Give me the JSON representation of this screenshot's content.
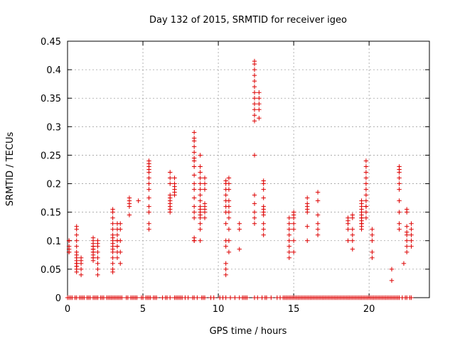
{
  "chart_data": {
    "type": "scatter",
    "title": "Day 132 of 2015, SRMTID for receiver igeo",
    "xlabel": "GPS time / hours",
    "ylabel": "SRMTID / TECUs",
    "xlim": [
      0,
      24
    ],
    "ylim": [
      0,
      0.45
    ],
    "x_ticks": [
      0,
      5,
      10,
      15,
      20
    ],
    "x_tick_labels": [
      "0",
      "5",
      "10",
      "15",
      "20"
    ],
    "y_ticks": [
      0,
      0.05,
      0.1,
      0.15,
      0.2,
      0.25,
      0.3,
      0.35,
      0.4,
      0.45
    ],
    "y_tick_labels": [
      "0",
      "0.05",
      "0.1",
      "0.15",
      "0.2",
      "0.25",
      "0.3",
      "0.35",
      "0.4",
      "0.45"
    ],
    "grid": true,
    "marker": "+",
    "colors": {
      "series": "#dd0000",
      "grid": "#a0a0a0",
      "axis": "#000000"
    },
    "series": [
      {
        "name": "SRMTID",
        "clusters": [
          {
            "x": 0.1,
            "values": [
              0.08,
              0.085,
              0.09,
              0.1,
              0.1,
              0.08
            ]
          },
          {
            "x": 0.6,
            "values": [
              0.045,
              0.05,
              0.055,
              0.06,
              0.065,
              0.07,
              0.075,
              0.08,
              0.09,
              0.1,
              0.11,
              0.12,
              0.125,
              0.06,
              0.055
            ]
          },
          {
            "x": 0.9,
            "values": [
              0.04,
              0.05,
              0.06,
              0.065,
              0.07
            ]
          },
          {
            "x": 1.7,
            "values": [
              0.065,
              0.07,
              0.075,
              0.08,
              0.085,
              0.09,
              0.095,
              0.1,
              0.105,
              0.085,
              0.09,
              0.08,
              0.07
            ]
          },
          {
            "x": 2.0,
            "values": [
              0.04,
              0.05,
              0.06,
              0.07,
              0.08,
              0.09,
              0.1,
              0.095
            ]
          },
          {
            "x": 3.0,
            "values": [
              0.045,
              0.05,
              0.06,
              0.07,
              0.08,
              0.09,
              0.1,
              0.11,
              0.12,
              0.13,
              0.14,
              0.15,
              0.155,
              0.085,
              0.095,
              0.105
            ]
          },
          {
            "x": 3.3,
            "values": [
              0.07,
              0.08,
              0.09,
              0.1,
              0.11,
              0.12,
              0.13,
              0.1,
              0.09
            ]
          },
          {
            "x": 3.5,
            "values": [
              0.06,
              0.08,
              0.1,
              0.12,
              0.13
            ]
          },
          {
            "x": 4.1,
            "values": [
              0.16,
              0.165,
              0.17,
              0.175,
              0.145
            ]
          },
          {
            "x": 4.7,
            "values": [
              0.17
            ]
          },
          {
            "x": 5.4,
            "values": [
              0.12,
              0.13,
              0.15,
              0.16,
              0.175,
              0.19,
              0.2,
              0.21,
              0.22,
              0.225,
              0.23,
              0.235,
              0.24
            ]
          },
          {
            "x": 6.8,
            "values": [
              0.15,
              0.155,
              0.16,
              0.165,
              0.17,
              0.175,
              0.18,
              0.2,
              0.21,
              0.22
            ]
          },
          {
            "x": 7.1,
            "values": [
              0.18,
              0.185,
              0.19,
              0.195,
              0.2,
              0.21
            ]
          },
          {
            "x": 8.4,
            "values": [
              0.1,
              0.105,
              0.14,
              0.15,
              0.16,
              0.175,
              0.19,
              0.2,
              0.215,
              0.23,
              0.24,
              0.245,
              0.255,
              0.265,
              0.275,
              0.28,
              0.29,
              0.1
            ]
          },
          {
            "x": 8.8,
            "values": [
              0.1,
              0.12,
              0.13,
              0.14,
              0.15,
              0.16,
              0.17,
              0.18,
              0.19,
              0.2,
              0.21,
              0.22,
              0.23,
              0.25,
              0.145,
              0.155
            ]
          },
          {
            "x": 9.1,
            "values": [
              0.14,
              0.15,
              0.155,
              0.16,
              0.165,
              0.19,
              0.2,
              0.21
            ]
          },
          {
            "x": 10.5,
            "values": [
              0.04,
              0.05,
              0.06,
              0.09,
              0.1,
              0.13,
              0.15,
              0.16,
              0.17,
              0.18,
              0.19,
              0.2,
              0.205
            ]
          },
          {
            "x": 10.7,
            "values": [
              0.08,
              0.1,
              0.12,
              0.14,
              0.15,
              0.16,
              0.17,
              0.19,
              0.2,
              0.21
            ]
          },
          {
            "x": 11.4,
            "values": [
              0.085,
              0.12,
              0.13
            ]
          },
          {
            "x": 12.4,
            "values": [
              0.13,
              0.14,
              0.15,
              0.165,
              0.18,
              0.25,
              0.31,
              0.32,
              0.33,
              0.34,
              0.35,
              0.36,
              0.37,
              0.38,
              0.39,
              0.4,
              0.41,
              0.415
            ]
          },
          {
            "x": 12.7,
            "values": [
              0.315,
              0.33,
              0.34,
              0.35,
              0.36
            ]
          },
          {
            "x": 13.0,
            "values": [
              0.11,
              0.12,
              0.13,
              0.145,
              0.15,
              0.155,
              0.16,
              0.175,
              0.19,
              0.2,
              0.205
            ]
          },
          {
            "x": 14.7,
            "values": [
              0.07,
              0.08,
              0.09,
              0.1,
              0.11,
              0.12,
              0.13,
              0.14
            ]
          },
          {
            "x": 15.0,
            "values": [
              0.08,
              0.1,
              0.12,
              0.13,
              0.14,
              0.145,
              0.15
            ]
          },
          {
            "x": 15.9,
            "values": [
              0.1,
              0.125,
              0.15,
              0.155,
              0.16,
              0.165,
              0.175
            ]
          },
          {
            "x": 16.6,
            "values": [
              0.11,
              0.12,
              0.13,
              0.145,
              0.17,
              0.185
            ]
          },
          {
            "x": 18.6,
            "values": [
              0.1,
              0.12,
              0.13,
              0.135,
              0.14
            ]
          },
          {
            "x": 18.9,
            "values": [
              0.085,
              0.1,
              0.11,
              0.12,
              0.14,
              0.145
            ]
          },
          {
            "x": 19.5,
            "values": [
              0.12,
              0.125,
              0.13,
              0.135,
              0.14,
              0.145,
              0.15,
              0.155,
              0.16,
              0.165,
              0.17,
              0.13,
              0.14
            ]
          },
          {
            "x": 19.8,
            "values": [
              0.14,
              0.15,
              0.16,
              0.17,
              0.18,
              0.19,
              0.2,
              0.21,
              0.22,
              0.23,
              0.24,
              0.16
            ]
          },
          {
            "x": 20.2,
            "values": [
              0.07,
              0.08,
              0.1,
              0.11,
              0.12
            ]
          },
          {
            "x": 21.5,
            "values": [
              0.03,
              0.05
            ]
          },
          {
            "x": 22.0,
            "values": [
              0.12,
              0.13,
              0.15,
              0.17,
              0.19,
              0.2,
              0.21,
              0.22,
              0.225,
              0.23
            ]
          },
          {
            "x": 22.3,
            "values": [
              0.06
            ]
          },
          {
            "x": 22.5,
            "values": [
              0.08,
              0.09,
              0.1,
              0.11,
              0.115,
              0.125,
              0.15,
              0.155
            ]
          },
          {
            "x": 22.8,
            "values": [
              0.09,
              0.1,
              0.11,
              0.12,
              0.13
            ]
          }
        ],
        "zero_points_x": [
          0.0,
          0.1,
          0.2,
          0.3,
          0.5,
          0.6,
          0.8,
          0.9,
          1.0,
          1.1,
          1.3,
          1.4,
          1.5,
          1.7,
          1.8,
          1.9,
          2.0,
          2.2,
          2.3,
          2.4,
          2.6,
          2.7,
          2.8,
          2.9,
          3.0,
          3.1,
          3.2,
          3.3,
          3.4,
          3.5,
          3.6,
          3.9,
          4.0,
          4.2,
          4.3,
          4.4,
          4.5,
          4.6,
          4.9,
          5.0,
          5.2,
          5.3,
          5.4,
          5.5,
          5.7,
          5.8,
          5.9,
          6.3,
          6.5,
          6.6,
          6.8,
          7.1,
          7.2,
          7.3,
          7.4,
          7.5,
          7.6,
          7.8,
          8.0,
          8.3,
          8.4,
          8.6,
          8.9,
          9.0,
          9.1,
          9.5,
          9.7,
          10.1,
          10.3,
          10.5,
          10.8,
          11.1,
          11.4,
          11.6,
          11.7,
          11.8,
          11.9,
          12.4,
          12.6,
          12.9,
          13.1,
          13.2,
          13.5,
          13.9,
          14.1,
          14.3,
          14.4,
          14.5,
          14.6,
          14.7,
          14.8,
          14.9,
          15.0,
          15.1,
          15.2,
          15.3,
          15.4,
          15.5,
          15.6,
          15.7,
          15.8,
          15.9,
          16.0,
          16.1,
          16.2,
          16.3,
          16.4,
          16.5,
          16.6,
          16.7,
          16.8,
          16.9,
          17.0,
          17.1,
          17.2,
          17.3,
          17.4,
          17.5,
          17.6,
          17.7,
          17.8,
          17.9,
          18.0,
          18.1,
          18.2,
          18.3,
          18.4,
          18.5,
          18.6,
          18.7,
          18.8,
          18.9,
          19.0,
          19.1,
          19.2,
          19.3,
          19.4,
          19.5,
          19.6,
          19.7,
          19.8,
          19.9,
          20.0,
          20.1,
          20.2,
          20.3,
          20.4,
          20.5,
          20.6,
          20.7,
          20.8,
          20.9,
          21.0,
          21.1,
          21.2,
          21.3,
          21.4,
          21.5,
          21.6,
          21.7,
          21.8,
          21.9,
          22.0,
          22.2,
          22.4,
          22.5,
          22.7,
          22.8
        ]
      }
    ]
  }
}
